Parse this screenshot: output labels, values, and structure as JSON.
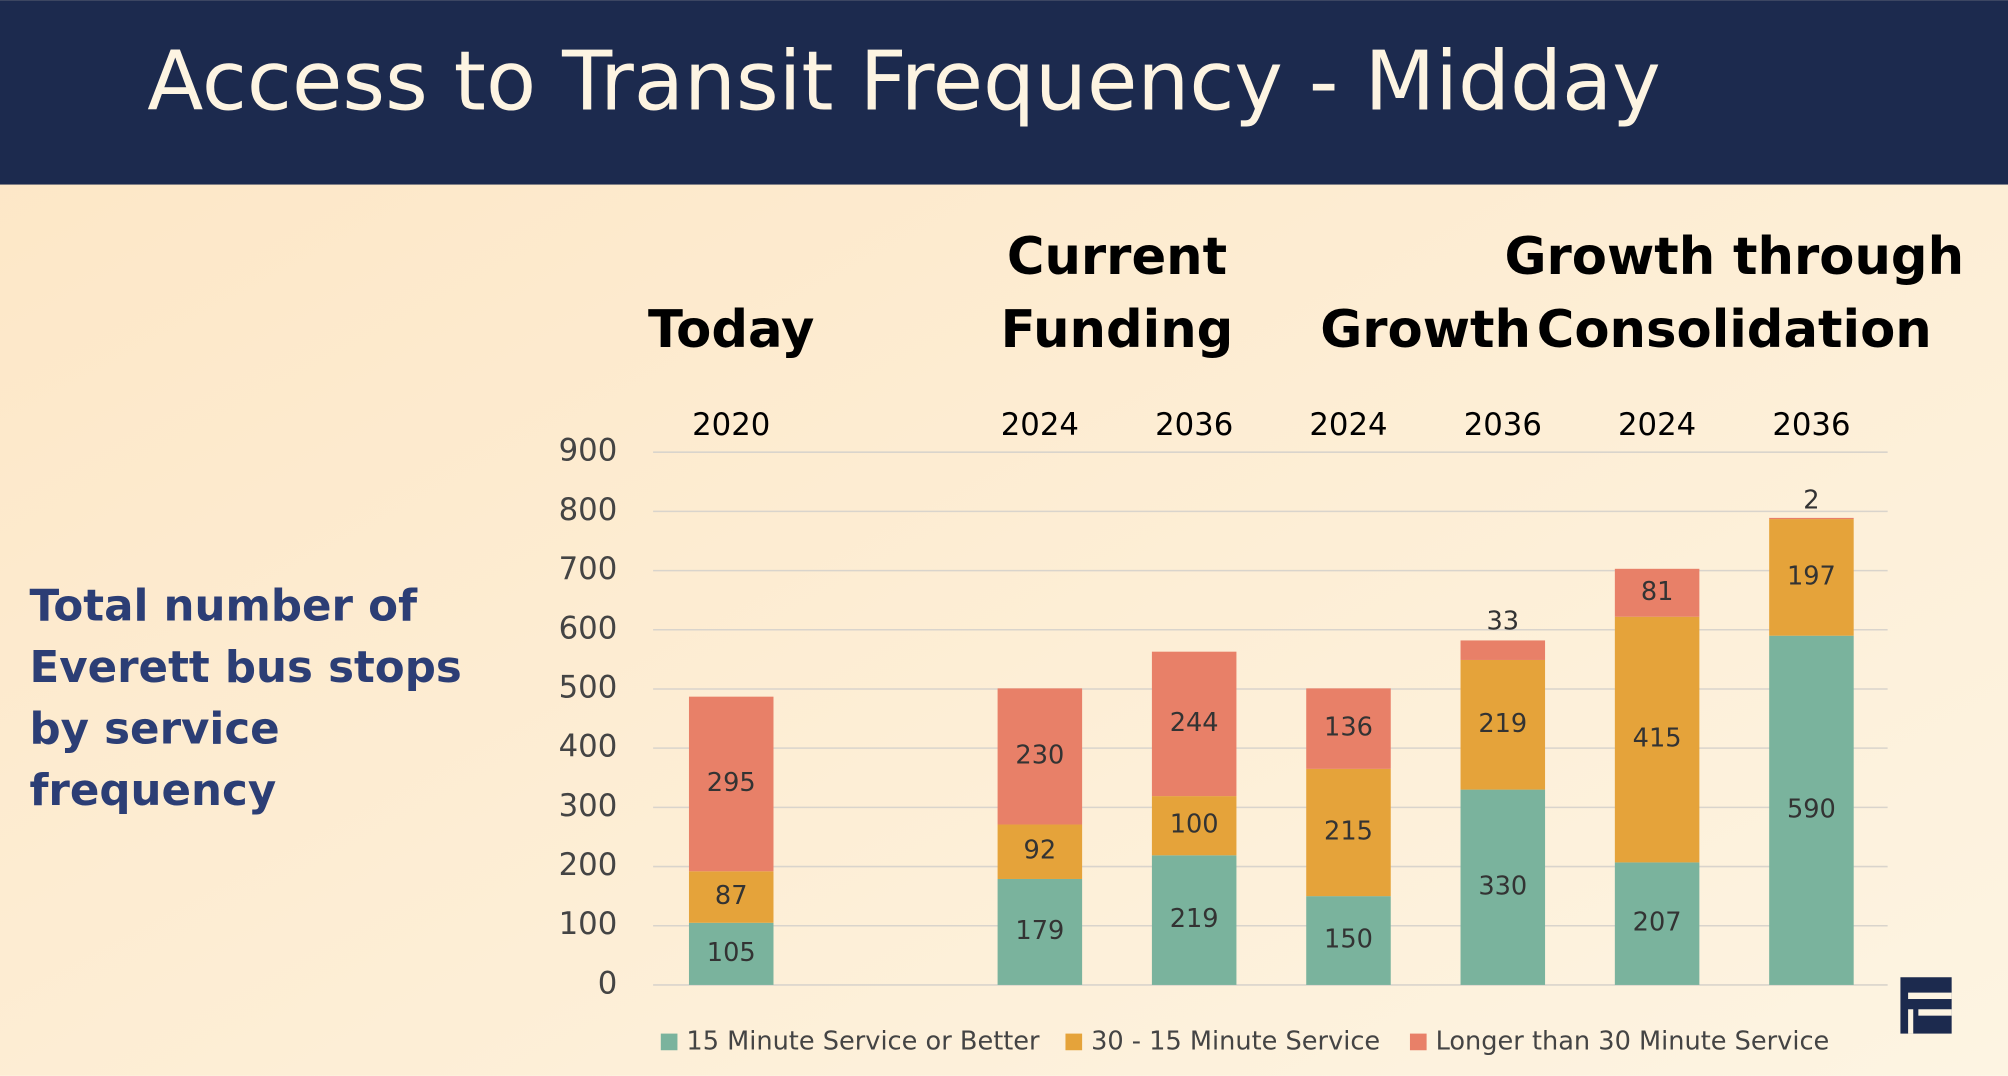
{
  "header": {
    "title": "Access to Transit Frequency - Midday"
  },
  "description": {
    "lines": [
      "Total number of",
      "Everett bus stops",
      "by service",
      "frequency"
    ]
  },
  "chart_data": {
    "type": "stacked-bar",
    "groups": [
      {
        "lines": [
          "Today"
        ],
        "from": 0,
        "to": 0
      },
      {
        "lines": [
          "Current",
          "Funding"
        ],
        "from": 2,
        "to": 3
      },
      {
        "lines": [
          "Growth"
        ],
        "from": 4,
        "to": 5
      },
      {
        "lines": [
          "Growth through",
          "Consolidation"
        ],
        "from": 6,
        "to": 7
      }
    ],
    "categories": [
      "2020",
      null,
      "2024",
      "2036",
      "2024",
      "2036",
      "2024",
      "2036"
    ],
    "series": [
      {
        "name": "15 Minute Service or Better",
        "color": "#7ab39d",
        "values": [
          105,
          null,
          179,
          219,
          150,
          330,
          207,
          590
        ]
      },
      {
        "name": "30 - 15 Minute Service",
        "color": "#e5a33a",
        "values": [
          87,
          null,
          92,
          100,
          215,
          219,
          415,
          197
        ]
      },
      {
        "name": "Longer than 30 Minute Service",
        "color": "#e88068",
        "values": [
          295,
          null,
          230,
          244,
          136,
          33,
          81,
          2
        ]
      }
    ],
    "ylim": [
      0,
      900
    ],
    "yticks": [
      0,
      100,
      200,
      300,
      400,
      500,
      600,
      700,
      800,
      900
    ],
    "grid": true,
    "legend": "bottom"
  }
}
